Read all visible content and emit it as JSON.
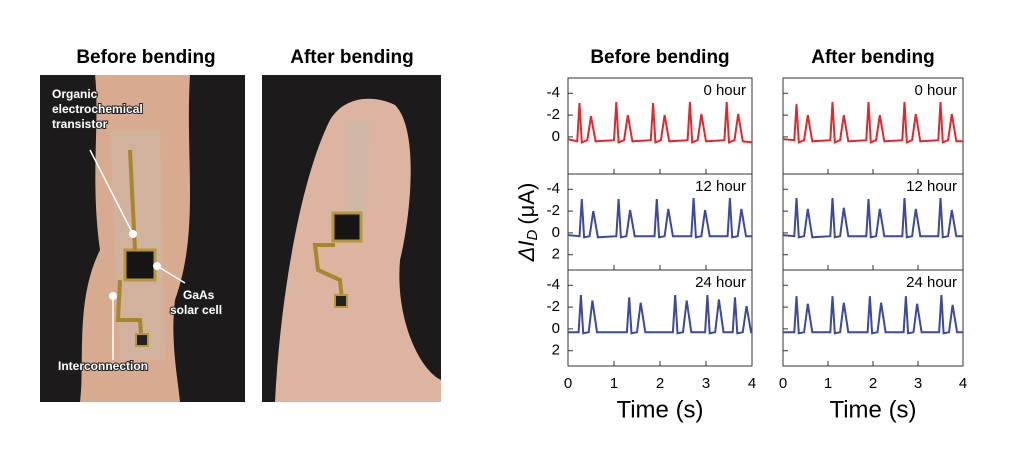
{
  "photos": {
    "before_title": "Before bending",
    "after_title": "After bending",
    "transistor_label": [
      "Organic",
      "electrochemical",
      "transistor"
    ],
    "solar_label": [
      "GaAs",
      "solar cell"
    ],
    "interconnection_label": "Interconnection"
  },
  "ylabel": {
    "main": "ΔI",
    "sub": "D",
    "unit": "(μA)"
  },
  "chart_data": [
    {
      "type": "line",
      "title": "Before bending",
      "annotation": "0 hour",
      "x": [
        0,
        0.2,
        0.25,
        0.3,
        0.42,
        0.5,
        0.6,
        1.0,
        1.05,
        1.1,
        1.22,
        1.3,
        1.4,
        1.8,
        1.85,
        1.9,
        2.02,
        2.1,
        2.2,
        2.6,
        2.65,
        2.7,
        2.82,
        2.9,
        3.0,
        3.4,
        3.45,
        3.5,
        3.62,
        3.7,
        3.8,
        4
      ],
      "series": [
        {
          "color": "#e8262a",
          "values": [
            0.2,
            0.4,
            -3.1,
            0.5,
            0.3,
            -1.9,
            0.4,
            0.3,
            -3.2,
            0.5,
            0.3,
            -2,
            0.4,
            0.3,
            -3.1,
            0.5,
            0.3,
            -2,
            0.4,
            0.3,
            -3.2,
            0.5,
            0.3,
            -2.1,
            0.4,
            0.3,
            -3.2,
            0.5,
            0.3,
            -2.1,
            0.4,
            0.5
          ]
        }
      ],
      "xlim": [
        0,
        4
      ],
      "xticks": [
        0,
        1,
        2,
        3,
        4
      ],
      "ylim": [
        -5.4,
        3.4
      ],
      "y_reversed": true,
      "yticks": [
        -4,
        -2,
        0
      ],
      "show_ytick_labels": true,
      "show_xtick_labels": false
    },
    {
      "type": "line",
      "title": "After bending",
      "annotation": "0 hour",
      "x": [
        0,
        0.25,
        0.3,
        0.35,
        0.47,
        0.55,
        0.65,
        1.05,
        1.1,
        1.15,
        1.27,
        1.35,
        1.45,
        1.85,
        1.9,
        1.95,
        2.07,
        2.15,
        2.25,
        2.65,
        2.7,
        2.75,
        2.87,
        2.95,
        3.05,
        3.45,
        3.5,
        3.55,
        3.67,
        3.75,
        3.85,
        4
      ],
      "series": [
        {
          "color": "#e8262a",
          "values": [
            0.2,
            0.3,
            -3,
            0.5,
            0.3,
            -2,
            0.4,
            0.3,
            -3.2,
            0.5,
            0.3,
            -2,
            0.4,
            0.3,
            -3.2,
            0.5,
            0.3,
            -2,
            0.4,
            0.3,
            -3.2,
            0.5,
            0.3,
            -2.1,
            0.4,
            0.3,
            -3.2,
            0.5,
            0.3,
            -2.1,
            0.4,
            0.4
          ]
        }
      ],
      "xlim": [
        0,
        4
      ],
      "xticks": [
        0,
        1,
        2,
        3,
        4
      ],
      "ylim": [
        -5.4,
        3.4
      ],
      "y_reversed": true,
      "yticks": [
        -4,
        -2,
        0
      ],
      "show_ytick_labels": false,
      "show_xtick_labels": false
    },
    {
      "type": "line",
      "annotation": "12 hour",
      "x": [
        0,
        0.25,
        0.3,
        0.35,
        0.47,
        0.55,
        0.65,
        1.05,
        1.1,
        1.15,
        1.27,
        1.35,
        1.45,
        1.88,
        1.93,
        1.98,
        2.1,
        2.18,
        2.28,
        2.68,
        2.73,
        2.78,
        2.9,
        2.98,
        3.08,
        3.47,
        3.52,
        3.57,
        3.69,
        3.77,
        3.87,
        4
      ],
      "series": [
        {
          "color": "#3b4aa0",
          "values": [
            0.2,
            0.3,
            -3.1,
            0.4,
            0.3,
            -2,
            0.4,
            0.3,
            -3.1,
            0.4,
            0.3,
            -2.1,
            0.3,
            0.3,
            -3.1,
            0.4,
            0.3,
            -2.2,
            0.3,
            0.3,
            -3.2,
            0.4,
            0.3,
            -2.1,
            0.3,
            0.3,
            -3.2,
            0.4,
            0.3,
            -2.2,
            0.3,
            0.3
          ]
        }
      ],
      "xlim": [
        0,
        4
      ],
      "xticks": [
        0,
        1,
        2,
        3,
        4
      ],
      "ylim": [
        -5.4,
        3.4
      ],
      "y_reversed": true,
      "yticks": [
        -4,
        -2,
        0,
        2
      ],
      "show_ytick_labels": true,
      "show_xtick_labels": false
    },
    {
      "type": "line",
      "annotation": "12 hour",
      "x": [
        0,
        0.25,
        0.3,
        0.35,
        0.47,
        0.55,
        0.65,
        1.05,
        1.1,
        1.15,
        1.27,
        1.35,
        1.45,
        1.85,
        1.9,
        1.95,
        2.07,
        2.15,
        2.25,
        2.65,
        2.7,
        2.75,
        2.87,
        2.95,
        3.05,
        3.45,
        3.5,
        3.55,
        3.67,
        3.75,
        3.85,
        4
      ],
      "series": [
        {
          "color": "#3b4aa0",
          "values": [
            0.2,
            0.3,
            -3.2,
            0.4,
            0.3,
            -2.2,
            0.4,
            0.3,
            -3.2,
            0.4,
            0.3,
            -2.3,
            0.3,
            0.3,
            -3.1,
            0.4,
            0.3,
            -2.2,
            0.3,
            0.3,
            -3.2,
            0.4,
            0.3,
            -2.2,
            0.3,
            0.3,
            -3.2,
            0.4,
            0.3,
            -2.1,
            0.3,
            0.3
          ]
        }
      ],
      "xlim": [
        0,
        4
      ],
      "xticks": [
        0,
        1,
        2,
        3,
        4
      ],
      "ylim": [
        -5.4,
        3.4
      ],
      "y_reversed": true,
      "yticks": [
        -4,
        -2,
        0,
        2
      ],
      "show_ytick_labels": false,
      "show_xtick_labels": false
    },
    {
      "type": "line",
      "annotation": "24 hour",
      "x": [
        0,
        0.23,
        0.28,
        0.33,
        0.45,
        0.53,
        0.63,
        1.28,
        1.33,
        1.38,
        1.5,
        1.58,
        1.68,
        2.28,
        2.33,
        2.38,
        2.5,
        2.58,
        2.68,
        2.98,
        3.03,
        3.08,
        3.2,
        3.28,
        3.38,
        3.58,
        3.63,
        3.68,
        3.8,
        3.88,
        3.98,
        4
      ],
      "series": [
        {
          "color": "#3b4aa0",
          "values": [
            0.3,
            0.3,
            -3.1,
            0.4,
            0.3,
            -2.6,
            0.3,
            0.3,
            -2.9,
            0.4,
            0.3,
            -2.4,
            0.3,
            0.3,
            -3.1,
            0.4,
            0.3,
            -2.6,
            0.3,
            0.3,
            -3.1,
            0.4,
            0.3,
            -2.7,
            0.3,
            0.3,
            -2.9,
            0.4,
            0.3,
            -2.1,
            0.3,
            0.3
          ]
        }
      ],
      "xlim": [
        0,
        4
      ],
      "xticks": [
        0,
        1,
        2,
        3,
        4
      ],
      "ylim": [
        -5.4,
        3.4
      ],
      "y_reversed": true,
      "yticks": [
        -4,
        -2,
        0,
        2
      ],
      "show_ytick_labels": true,
      "show_xtick_labels": true,
      "xlabel": "Time (s)"
    },
    {
      "type": "line",
      "annotation": "24 hour",
      "x": [
        0,
        0.25,
        0.3,
        0.35,
        0.47,
        0.55,
        0.65,
        1.05,
        1.1,
        1.15,
        1.27,
        1.35,
        1.45,
        1.88,
        1.93,
        1.98,
        2.1,
        2.18,
        2.28,
        2.68,
        2.73,
        2.78,
        2.9,
        2.98,
        3.08,
        3.47,
        3.52,
        3.57,
        3.69,
        3.77,
        3.87,
        4
      ],
      "series": [
        {
          "color": "#3b4aa0",
          "values": [
            0.3,
            0.3,
            -3,
            0.4,
            0.3,
            -2.3,
            0.3,
            0.3,
            -3,
            0.4,
            0.3,
            -2.4,
            0.3,
            0.3,
            -3,
            0.4,
            0.3,
            -2.4,
            0.3,
            0.3,
            -3,
            0.4,
            0.3,
            -2.3,
            0.3,
            0.3,
            -3.1,
            0.4,
            0.3,
            -2.2,
            0.3,
            0.3
          ]
        }
      ],
      "xlim": [
        0,
        4
      ],
      "xticks": [
        0,
        1,
        2,
        3,
        4
      ],
      "ylim": [
        -5.4,
        3.4
      ],
      "y_reversed": true,
      "yticks": [
        -4,
        -2,
        0,
        2
      ],
      "show_ytick_labels": false,
      "show_xtick_labels": true,
      "xlabel": "Time (s)"
    }
  ]
}
